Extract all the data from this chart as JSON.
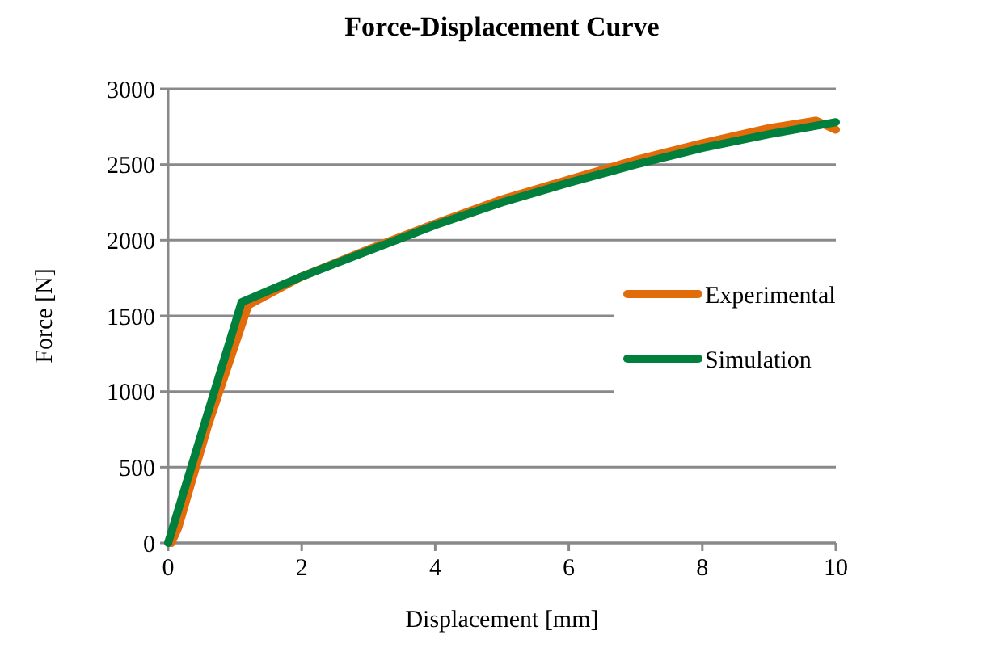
{
  "chart_data": {
    "type": "line",
    "title": "Force-Displacement Curve",
    "xlabel": "Displacement  [mm]",
    "ylabel": "Force [N]",
    "xlim": [
      0,
      10
    ],
    "xticks": [
      0,
      2,
      4,
      6,
      8,
      10
    ],
    "ylim": [
      0,
      3000
    ],
    "yticks": [
      0,
      500,
      1000,
      1500,
      2000,
      2500,
      3000
    ],
    "grid": "y",
    "legend": "right",
    "marker": "none",
    "line_style": "solid",
    "series": [
      {
        "name": "Experimental",
        "color": "#e36c0a",
        "x": [
          0.05,
          0.15,
          0.6,
          1.2,
          2,
          3,
          4,
          5,
          6,
          7,
          8,
          9,
          9.7,
          10
        ],
        "values": [
          0,
          100,
          780,
          1570,
          1760,
          1940,
          2110,
          2270,
          2400,
          2530,
          2640,
          2740,
          2790,
          2730
        ]
      },
      {
        "name": "Simulation",
        "color": "#00803c",
        "x": [
          0,
          1.1,
          2,
          3,
          4,
          5,
          6,
          7,
          8,
          9,
          10
        ],
        "values": [
          0,
          1590,
          1760,
          1930,
          2100,
          2250,
          2380,
          2500,
          2610,
          2700,
          2780
        ]
      }
    ]
  }
}
